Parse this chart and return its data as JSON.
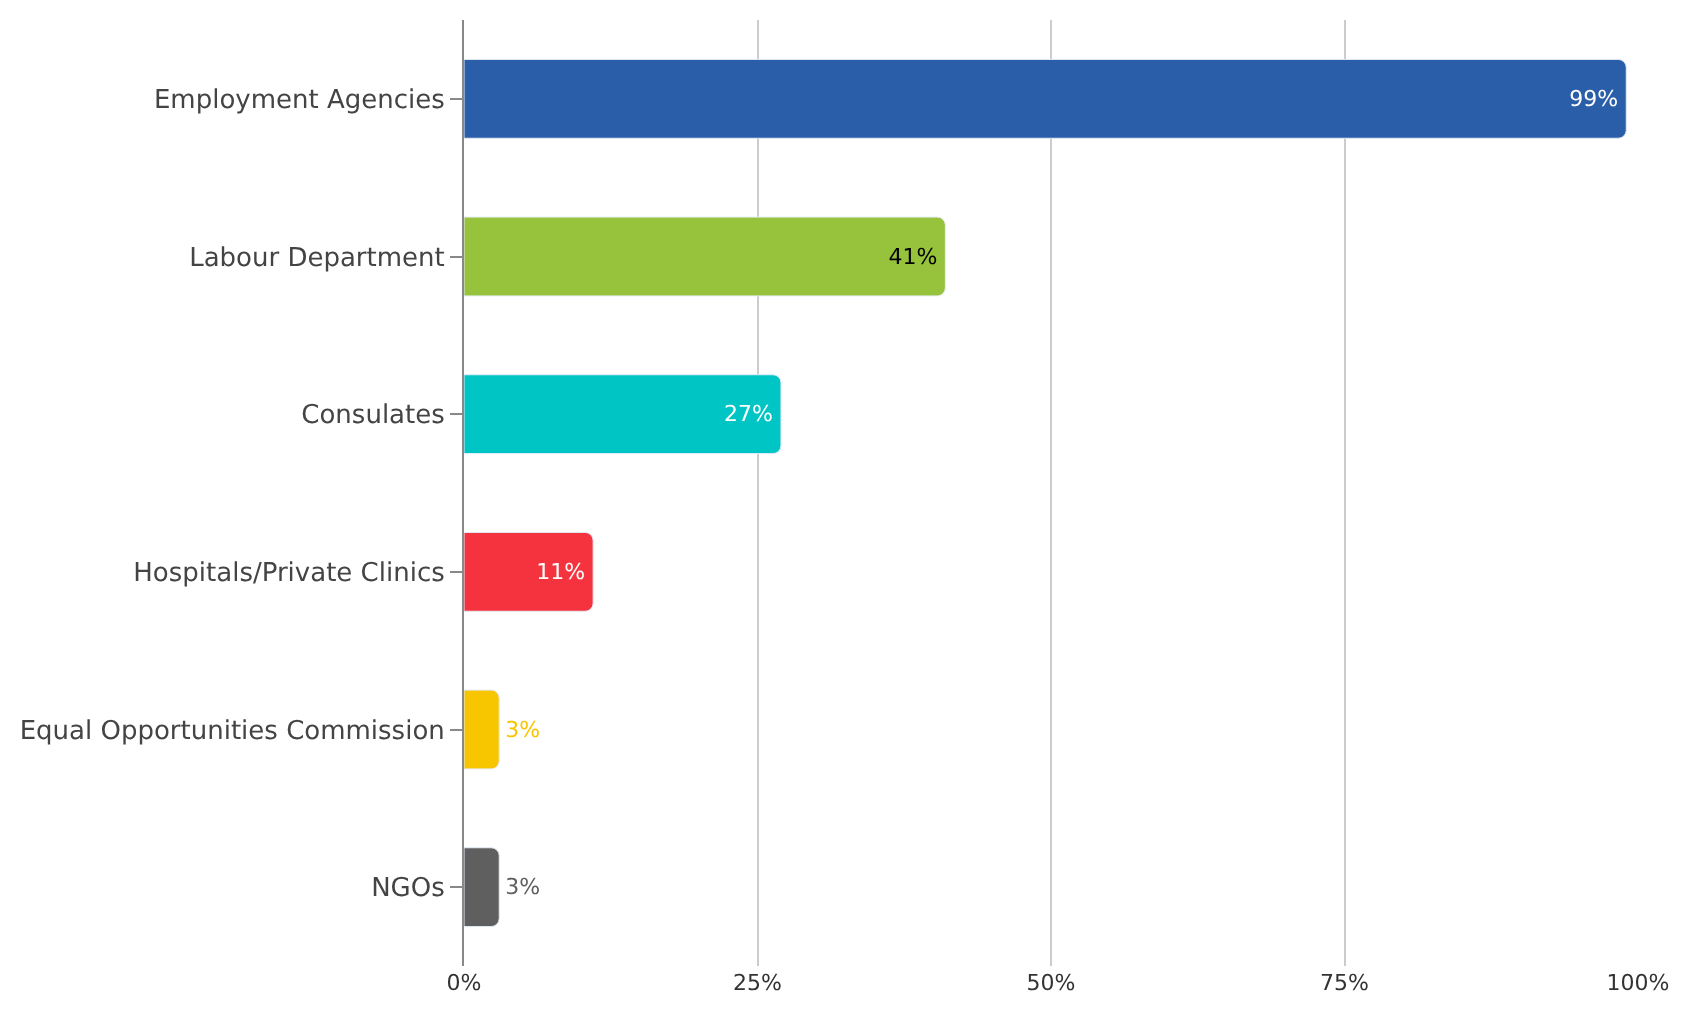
{
  "chart_data": {
    "type": "bar",
    "orientation": "horizontal",
    "categories": [
      "Employment Agencies",
      "Labour Department",
      "Consulates",
      "Hospitals/Private Clinics",
      "Equal Opportunities Commission",
      "NGOs"
    ],
    "values": [
      99,
      41,
      27,
      11,
      3,
      3
    ],
    "colors": [
      "#2a5ea8",
      "#97c23c",
      "#00c5c5",
      "#f5333f",
      "#f8c600",
      "#5f5f5f"
    ],
    "value_labels": [
      "99%",
      "41%",
      "27%",
      "11%",
      "3%",
      "3%"
    ],
    "xlim": [
      0,
      100
    ],
    "xticks": [
      {
        "value": 0,
        "label": "0%"
      },
      {
        "value": 25,
        "label": "25%"
      },
      {
        "value": 50,
        "label": "50%"
      },
      {
        "value": 75,
        "label": "75%"
      },
      {
        "value": 100,
        "label": "100%"
      }
    ],
    "grid": "x",
    "legend": false
  }
}
